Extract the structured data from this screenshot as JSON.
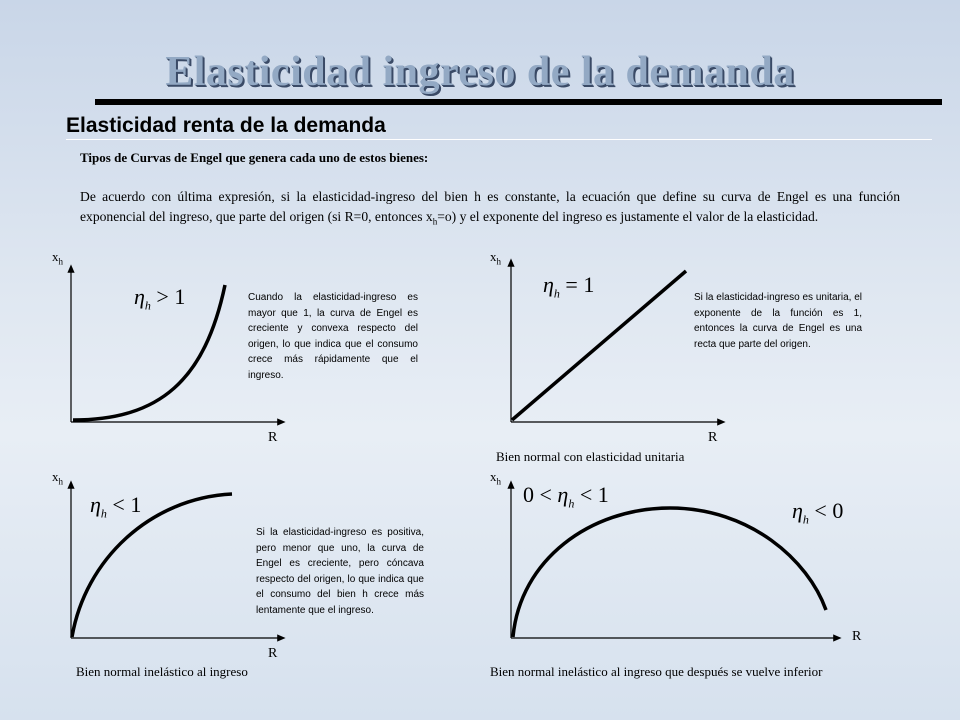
{
  "title": "Elasticidad ingreso de la demanda",
  "subtitle": "Elasticidad renta de la demanda",
  "heading": "Tipos de Curvas de Engel que genera cada uno de estos bienes:",
  "paragraph": {
    "part1": "De acuerdo con última expresión, si la elasticidad-ingreso del bien h es constante, la ecuación que define su curva de Engel es una función exponencial del ingreso, que parte del origen (si R=0, entonces x",
    "sub": "h",
    "part2": "=o) y el exponente del ingreso es justamente el valor de la elasticidad."
  },
  "axis": {
    "y": "x",
    "y_sub": "h",
    "x": "R"
  },
  "panels": {
    "top_left": {
      "eq_symbol": "η",
      "eq_sub": "h",
      "eq_rel": " > 1",
      "note": "Cuando la elasticidad-ingreso es mayor que 1, la curva de Engel es creciente y convexa respecto del origen, lo que indica que el consumo crece más rápidamente que el ingreso.",
      "caption": ""
    },
    "top_right": {
      "eq_symbol": "η",
      "eq_sub": "h",
      "eq_rel": " = 1",
      "note": "Si la elasticidad-ingreso es unitaria, el exponente de la función es 1, entonces la curva de Engel es una recta que parte del origen.",
      "caption": "Bien normal con elasticidad unitaria"
    },
    "bottom_left": {
      "eq_symbol": "η",
      "eq_sub": "h",
      "eq_rel": " < 1",
      "note": "Si la elasticidad-ingreso es positiva, pero menor que uno, la curva de Engel es creciente, pero cóncava respecto del origen, lo que indica que el consumo del bien h crece más lentamente que el ingreso.",
      "caption": "Bien normal inelástico al ingreso"
    },
    "bottom_right": {
      "eq1_pre": "0 < ",
      "eq1_symbol": "η",
      "eq1_sub": "h",
      "eq1_rel": " < 1",
      "eq2_symbol": "η",
      "eq2_sub": "h",
      "eq2_rel": " < 0",
      "caption": "Bien normal inelástico al ingreso que después se vuelve inferior"
    }
  }
}
